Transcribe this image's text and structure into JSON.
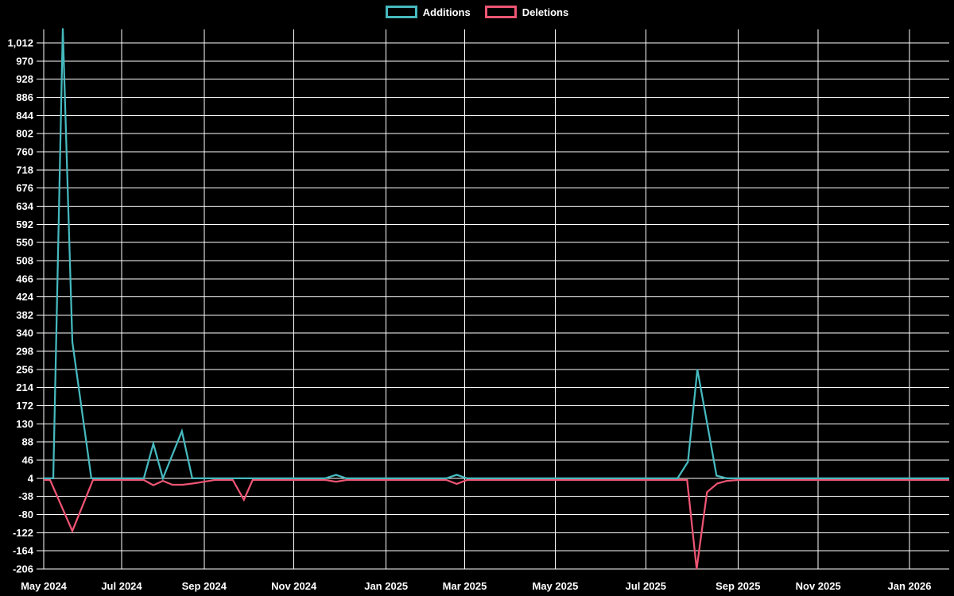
{
  "legend": {
    "items": [
      {
        "label": "Additions",
        "color": "#46b9be"
      },
      {
        "label": "Deletions",
        "color": "#ee5573"
      }
    ]
  },
  "chart_data": {
    "type": "line",
    "title": "",
    "background": "#000000",
    "gridline_color": "#ffffff",
    "text_color": "#ffffff",
    "grid": true,
    "legend_position": "top-center",
    "ylim": [
      -206,
      1012
    ],
    "y_ticks": [
      -206,
      -164,
      -122,
      -80,
      -38,
      4,
      46,
      88,
      130,
      172,
      214,
      256,
      298,
      340,
      382,
      424,
      466,
      508,
      550,
      592,
      634,
      676,
      718,
      760,
      802,
      844,
      886,
      928,
      970,
      1012
    ],
    "y_tick_labels": [
      "-206",
      "-164",
      "-122",
      "-80",
      "-38",
      "4",
      "46",
      "88",
      "130",
      "172",
      "214",
      "256",
      "298",
      "340",
      "382",
      "424",
      "466",
      "508",
      "550",
      "592",
      "634",
      "676",
      "718",
      "760",
      "802",
      "844",
      "886",
      "928",
      "970",
      "1,012"
    ],
    "x_ticks": [
      {
        "label": "May 2024",
        "pos": 0.0
      },
      {
        "label": "Jul 2024",
        "pos": 0.086
      },
      {
        "label": "Sep 2024",
        "pos": 0.1772
      },
      {
        "label": "Nov 2024",
        "pos": 0.2763
      },
      {
        "label": "Jan 2025",
        "pos": 0.3781
      },
      {
        "label": "Mar 2025",
        "pos": 0.4649
      },
      {
        "label": "May 2025",
        "pos": 0.5649
      },
      {
        "label": "Jul 2025",
        "pos": 0.6649
      },
      {
        "label": "Sep 2025",
        "pos": 0.7667
      },
      {
        "label": "Nov 2025",
        "pos": 0.8553
      },
      {
        "label": "Jan 2026",
        "pos": 0.9561
      }
    ],
    "series": [
      {
        "name": "Additions",
        "color": "#46b9be",
        "points": [
          [
            0.0,
            4
          ],
          [
            0.0105,
            4
          ],
          [
            0.0211,
            1046
          ],
          [
            0.0316,
            320
          ],
          [
            0.0421,
            161
          ],
          [
            0.0526,
            4
          ],
          [
            0.1105,
            4
          ],
          [
            0.1211,
            84
          ],
          [
            0.1316,
            4
          ],
          [
            0.1526,
            113
          ],
          [
            0.164,
            4
          ],
          [
            0.3105,
            4
          ],
          [
            0.3228,
            12
          ],
          [
            0.3342,
            4
          ],
          [
            0.4447,
            4
          ],
          [
            0.4561,
            12
          ],
          [
            0.4675,
            4
          ],
          [
            0.7,
            4
          ],
          [
            0.7114,
            42
          ],
          [
            0.7219,
            256
          ],
          [
            0.7325,
            133
          ],
          [
            0.743,
            10
          ],
          [
            0.7544,
            4
          ],
          [
            1.0,
            4
          ]
        ]
      },
      {
        "name": "Deletions",
        "color": "#ee5573",
        "points": [
          [
            0.0,
            0
          ],
          [
            0.007,
            0
          ],
          [
            0.0316,
            -118
          ],
          [
            0.0544,
            0
          ],
          [
            0.1105,
            0
          ],
          [
            0.1211,
            -12
          ],
          [
            0.1316,
            -2
          ],
          [
            0.1421,
            -11
          ],
          [
            0.1535,
            -11
          ],
          [
            0.1649,
            -8
          ],
          [
            0.1772,
            -4
          ],
          [
            0.1886,
            0
          ],
          [
            0.2088,
            0
          ],
          [
            0.2211,
            -46
          ],
          [
            0.2307,
            0
          ],
          [
            0.3114,
            0
          ],
          [
            0.3228,
            -4
          ],
          [
            0.3342,
            0
          ],
          [
            0.4447,
            0
          ],
          [
            0.4561,
            -9
          ],
          [
            0.4675,
            0
          ],
          [
            0.7,
            0
          ],
          [
            0.7105,
            0
          ],
          [
            0.7211,
            -206
          ],
          [
            0.7325,
            -28
          ],
          [
            0.7439,
            -8
          ],
          [
            0.7544,
            -2
          ],
          [
            0.7667,
            0
          ],
          [
            1.0,
            0
          ]
        ]
      }
    ]
  }
}
